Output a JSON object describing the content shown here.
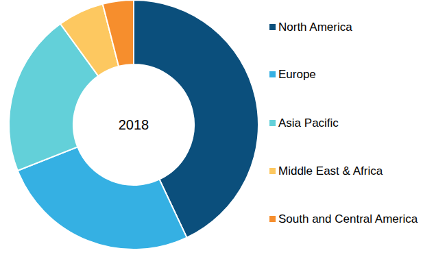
{
  "chart_data": {
    "type": "donut",
    "title": "2018",
    "categories": [
      "North America",
      "Europe",
      "Asia Pacific",
      "Middle East & Africa",
      "South and Central America"
    ],
    "values": [
      43,
      26,
      21,
      6,
      4
    ],
    "colors": [
      "#0b4f7c",
      "#35b0e3",
      "#63d0d9",
      "#fdc860",
      "#f68e2d"
    ],
    "legend": "right"
  }
}
